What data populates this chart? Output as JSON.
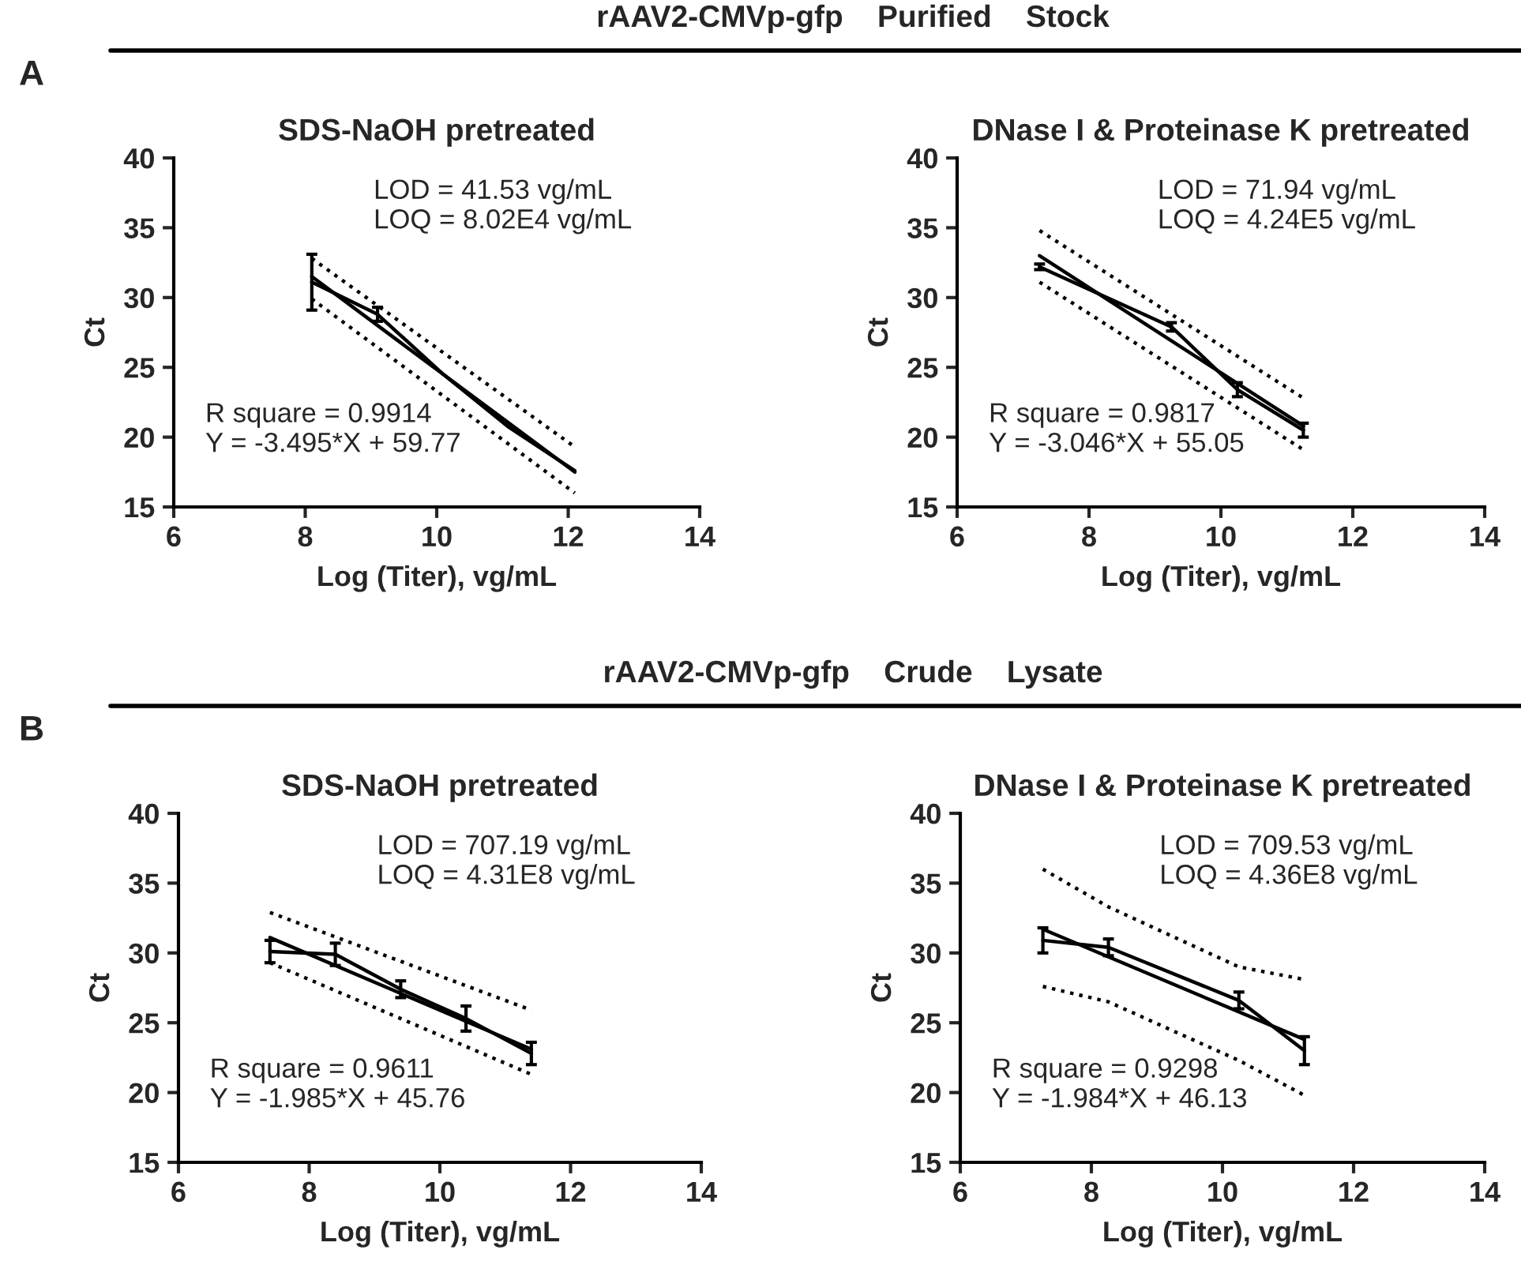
{
  "chart_data": [
    {
      "type": "line",
      "title": "rAAV2-CMVp-gfp    Purified    Stock",
      "subtitle": "SDS-NaOH pretreated",
      "xlabel": "Log (Titer), vg/mL",
      "ylabel": "Ct",
      "xlim": [
        6,
        14
      ],
      "xticks": [
        6,
        8,
        10,
        12,
        14
      ],
      "ylim": [
        15,
        40
      ],
      "yticks": [
        15,
        20,
        25,
        30,
        35,
        40
      ],
      "marker": "none",
      "annotations": [
        "LOD = 41.53 vg/mL",
        "LOQ = 8.02E4 vg/mL",
        "R square = 0.9914",
        "Y = -3.495*X + 59.77",
        "A"
      ],
      "series": [
        {
          "color": "#000000",
          "x": [
            8.1,
            9.1,
            10.1,
            11.1,
            12.1
          ],
          "values": [
            31.1,
            28.8,
            24.5,
            20.7,
            17.6
          ],
          "errors": [
            2.0,
            0.5,
            null,
            null,
            null
          ]
        },
        {
          "color": "#000000",
          "x": [
            8.1,
            12.1
          ],
          "values": [
            31.5,
            17.5
          ]
        },
        {
          "color": "#000000",
          "x": [
            8.1,
            12.1
          ],
          "values": [
            32.8,
            19.3
          ],
          "line_style": "dotted"
        },
        {
          "color": "#000000",
          "x": [
            8.1,
            12.1
          ],
          "values": [
            29.9,
            16.0
          ],
          "line_style": "dotted"
        }
      ]
    },
    {
      "type": "line",
      "subtitle": "DNase I & Proteinase K pretreated",
      "xlabel": "Log (Titer), vg/mL",
      "ylabel": "Ct",
      "xlim": [
        6,
        14
      ],
      "xticks": [
        6,
        8,
        10,
        12,
        14
      ],
      "ylim": [
        15,
        40
      ],
      "yticks": [
        15,
        20,
        25,
        30,
        35,
        40
      ],
      "marker": "none",
      "annotations": [
        "LOD = 71.94 vg/mL",
        "LOQ = 4.24E5 vg/mL",
        "R square = 0.9817",
        "Y = -3.046*X + 55.05"
      ],
      "series": [
        {
          "color": "#000000",
          "x": [
            7.25,
            9.25,
            10.25,
            11.25
          ],
          "values": [
            32.2,
            27.9,
            23.4,
            20.5
          ],
          "errors": [
            0.2,
            0.3,
            0.5,
            0.5
          ]
        },
        {
          "color": "#000000",
          "x": [
            7.25,
            11.25
          ],
          "values": [
            33.0,
            20.8
          ]
        },
        {
          "color": "#000000",
          "x": [
            7.25,
            11.25
          ],
          "values": [
            34.8,
            22.8
          ],
          "line_style": "dotted"
        },
        {
          "color": "#000000",
          "x": [
            7.25,
            11.25
          ],
          "values": [
            31.1,
            19.1
          ],
          "line_style": "dotted"
        }
      ]
    },
    {
      "type": "line",
      "title": "rAAV2-CMVp-gfp    Crude    Lysate",
      "subtitle": "SDS-NaOH pretreated",
      "xlabel": "Log (Titer), vg/mL",
      "ylabel": "Ct",
      "xlim": [
        6,
        14
      ],
      "xticks": [
        6,
        8,
        10,
        12,
        14
      ],
      "ylim": [
        15,
        40
      ],
      "yticks": [
        15,
        20,
        25,
        30,
        35,
        40
      ],
      "marker": "none",
      "annotations": [
        "LOD = 707.19 vg/mL",
        "LOQ = 4.31E8 vg/mL",
        "R square = 0.9611",
        "Y = -1.985*X + 45.76",
        "B"
      ],
      "series": [
        {
          "color": "#000000",
          "x": [
            7.4,
            8.4,
            9.4,
            10.4,
            11.4
          ],
          "values": [
            30.1,
            29.9,
            27.4,
            25.3,
            22.8
          ],
          "errors": [
            0.8,
            0.8,
            0.6,
            0.9,
            0.8
          ]
        },
        {
          "color": "#000000",
          "x": [
            7.4,
            11.4
          ],
          "values": [
            31.1,
            23.1
          ]
        },
        {
          "color": "#000000",
          "x": [
            7.4,
            11.4
          ],
          "values": [
            32.9,
            25.9
          ],
          "line_style": "dotted"
        },
        {
          "color": "#000000",
          "x": [
            7.4,
            11.4
          ],
          "values": [
            29.3,
            21.3
          ],
          "line_style": "dotted"
        }
      ]
    },
    {
      "type": "line",
      "subtitle": "DNase I & Proteinase K pretreated",
      "xlabel": "Log (Titer), vg/mL",
      "ylabel": "Ct",
      "xlim": [
        6,
        14
      ],
      "xticks": [
        6,
        8,
        10,
        12,
        14
      ],
      "ylim": [
        15,
        40
      ],
      "yticks": [
        15,
        20,
        25,
        30,
        35,
        40
      ],
      "marker": "none",
      "annotations": [
        "LOD = 709.53 vg/mL",
        "LOQ = 4.36E8 vg/mL",
        "R square = 0.9298",
        "Y = -1.984*X + 46.13"
      ],
      "series": [
        {
          "color": "#000000",
          "x": [
            7.26,
            8.26,
            10.25,
            11.25
          ],
          "values": [
            30.9,
            30.4,
            26.6,
            23.0
          ],
          "errors": [
            0.9,
            0.6,
            0.6,
            1.0
          ]
        },
        {
          "color": "#000000",
          "x": [
            7.26,
            11.25
          ],
          "values": [
            31.7,
            23.8
          ]
        },
        {
          "color": "#000000",
          "x": [
            7.26,
            8.26,
            10.25,
            11.25
          ],
          "values": [
            36.0,
            33.3,
            29.0,
            28.1
          ],
          "line_style": "dotted"
        },
        {
          "color": "#000000",
          "x": [
            7.26,
            8.26,
            10.25,
            11.25
          ],
          "values": [
            27.6,
            26.5,
            22.3,
            19.8
          ],
          "line_style": "dotted"
        }
      ]
    }
  ]
}
